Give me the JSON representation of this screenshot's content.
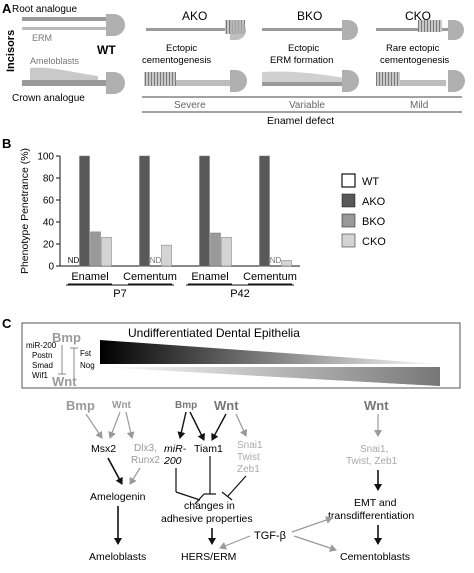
{
  "panel_a": {
    "letter": "A",
    "root_analogue": "Root analogue",
    "crown_analogue": "Crown analogue",
    "incisors": "Incisors",
    "erm": "ERM",
    "ameloblasts": "Ameloblasts",
    "wt": "WT",
    "ako": "AKO",
    "bko": "BKO",
    "cko": "CKO",
    "ako_desc_1": "Ectopic",
    "ako_desc_2": "cementogenesis",
    "bko_desc_1": "Ectopic",
    "bko_desc_2": "ERM formation",
    "cko_desc_1": "Rare ectopic",
    "cko_desc_2": "cementogenesis",
    "severity": [
      "Severe",
      "Variable",
      "Mild"
    ],
    "enamel_defect": "Enamel defect"
  },
  "panel_b": {
    "letter": "B",
    "nd": "ND",
    "colors": {
      "WT": "#ffffff",
      "AKO": "#595959",
      "BKO": "#999999",
      "CKO": "#d4d4d4"
    }
  },
  "chart_data": {
    "type": "bar",
    "ylabel": "Phenotype Penetrance (%)",
    "ylim": [
      0,
      100
    ],
    "yticks": [
      "0",
      "20",
      "40",
      "60",
      "80",
      "100"
    ],
    "groups": [
      {
        "time": "P7",
        "categories": [
          "Enamel",
          "Cementum"
        ]
      },
      {
        "time": "P42",
        "categories": [
          "Enamel",
          "Cementum"
        ]
      }
    ],
    "series": [
      {
        "name": "WT",
        "values": [
          0,
          0,
          0,
          0
        ],
        "labels": [
          "ND",
          "",
          "",
          ""
        ]
      },
      {
        "name": "AKO",
        "values": [
          100,
          100,
          100,
          100
        ]
      },
      {
        "name": "BKO",
        "values": [
          31,
          0,
          30,
          0
        ],
        "labels": [
          "",
          "ND",
          "",
          "ND"
        ]
      },
      {
        "name": "CKO",
        "values": [
          26,
          19,
          26,
          5
        ]
      }
    ]
  },
  "panel_c": {
    "letter": "C",
    "box_title": "Undifferentiated Dental Epithelia",
    "bmp": "Bmp",
    "wnt": "Wnt",
    "left_list": [
      "miR-200",
      "Postn",
      "Smad",
      "Wif1"
    ],
    "right_list": [
      "Fst",
      "Nog"
    ],
    "col1": {
      "bmp": "Bmp",
      "wnt": "Wnt",
      "msx2": "Msx2",
      "dlx3": "Dlx3,",
      "runx2": "Runx2",
      "amelogenin": "Amelogenin",
      "end": "Ameloblasts"
    },
    "col2": {
      "bmp": "Bmp",
      "wnt": "Wnt",
      "mir_1": "miR-",
      "mir_2": "200",
      "tiam1": "Tiam1",
      "snai1": "Snai1",
      "twist": "Twist",
      "zeb1": "Zeb1",
      "changes_1": "changes in",
      "changes_2": "adhesive properties",
      "end": "HERS/ERM"
    },
    "col3": {
      "wnt": "Wnt",
      "snai_1": "Snai1,",
      "snai_2": "Twist, Zeb1",
      "emt_1": "EMT and",
      "emt_2": "transdifferentiation",
      "end": "Cementoblasts"
    },
    "tgf": "TGF-β"
  }
}
